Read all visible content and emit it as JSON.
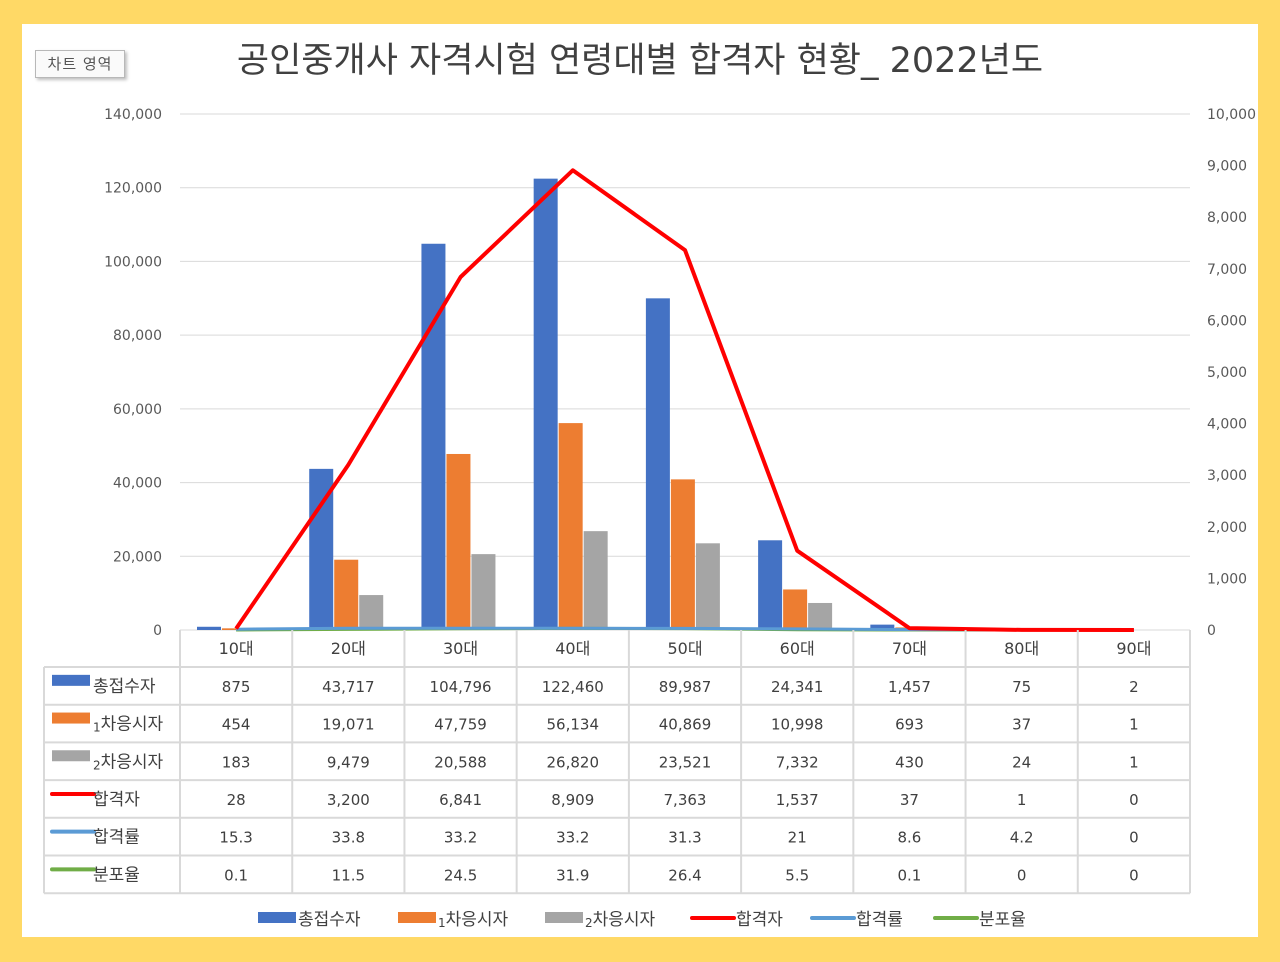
{
  "chart_area_label": "차트 영역",
  "chart_data": {
    "type": "bar",
    "title": "공인중개사 자격시험 연령대별 합격자 현황_ 2022년도",
    "categories": [
      "10대",
      "20대",
      "30대",
      "40대",
      "50대",
      "60대",
      "70대",
      "80대",
      "90대"
    ],
    "y_left": {
      "ylim": [
        0,
        140000
      ],
      "ticks": [
        "0",
        "20,000",
        "40,000",
        "60,000",
        "80,000",
        "100,000",
        "120,000",
        "140,000"
      ]
    },
    "y_right": {
      "ylim": [
        0,
        10000
      ],
      "ticks": [
        "0",
        "1,000",
        "2,000",
        "3,000",
        "4,000",
        "5,000",
        "6,000",
        "7,000",
        "8,000",
        "9,000",
        "10,000"
      ]
    },
    "series": [
      {
        "name": "총접수자",
        "type": "bar",
        "axis": "left",
        "color": "#4472C4",
        "values": [
          875,
          43717,
          104796,
          122460,
          89987,
          24341,
          1457,
          75,
          2
        ],
        "labels": [
          "875",
          "43,717",
          "104,796",
          "122,460",
          "89,987",
          "24,341",
          "1,457",
          "75",
          "2"
        ]
      },
      {
        "name": "1차응시자",
        "type": "bar",
        "axis": "left",
        "color": "#ED7D31",
        "values": [
          454,
          19071,
          47759,
          56134,
          40869,
          10998,
          693,
          37,
          1
        ],
        "labels": [
          "454",
          "19,071",
          "47,759",
          "56,134",
          "40,869",
          "10,998",
          "693",
          "37",
          "1"
        ]
      },
      {
        "name": "2차응시자",
        "type": "bar",
        "axis": "left",
        "color": "#A5A5A5",
        "values": [
          183,
          9479,
          20588,
          26820,
          23521,
          7332,
          430,
          24,
          1
        ],
        "labels": [
          "183",
          "9,479",
          "20,588",
          "26,820",
          "23,521",
          "7,332",
          "430",
          "24",
          "1"
        ]
      },
      {
        "name": "합격자",
        "type": "line",
        "axis": "right",
        "color": "#FF0000",
        "values": [
          28,
          3200,
          6841,
          8909,
          7363,
          1537,
          37,
          1,
          0
        ],
        "labels": [
          "28",
          "3,200",
          "6,841",
          "8,909",
          "7,363",
          "1,537",
          "37",
          "1",
          "0"
        ]
      },
      {
        "name": "합격률",
        "type": "line",
        "axis": "right",
        "color": "#5B9BD5",
        "values": [
          15.3,
          33.8,
          33.2,
          33.2,
          31.3,
          21,
          8.6,
          4.2,
          0
        ],
        "labels": [
          "15.3",
          "33.8",
          "33.2",
          "33.2",
          "31.3",
          "21",
          "8.6",
          "4.2",
          "0"
        ]
      },
      {
        "name": "분포율",
        "type": "line",
        "axis": "right",
        "color": "#70AD47",
        "values": [
          0.1,
          11.5,
          24.5,
          31.9,
          26.4,
          5.5,
          0.1,
          0,
          0
        ],
        "labels": [
          "0.1",
          "11.5",
          "24.5",
          "31.9",
          "26.4",
          "5.5",
          "0.1",
          "0",
          "0"
        ]
      }
    ],
    "legend_position": "bottom",
    "data_table": true
  }
}
